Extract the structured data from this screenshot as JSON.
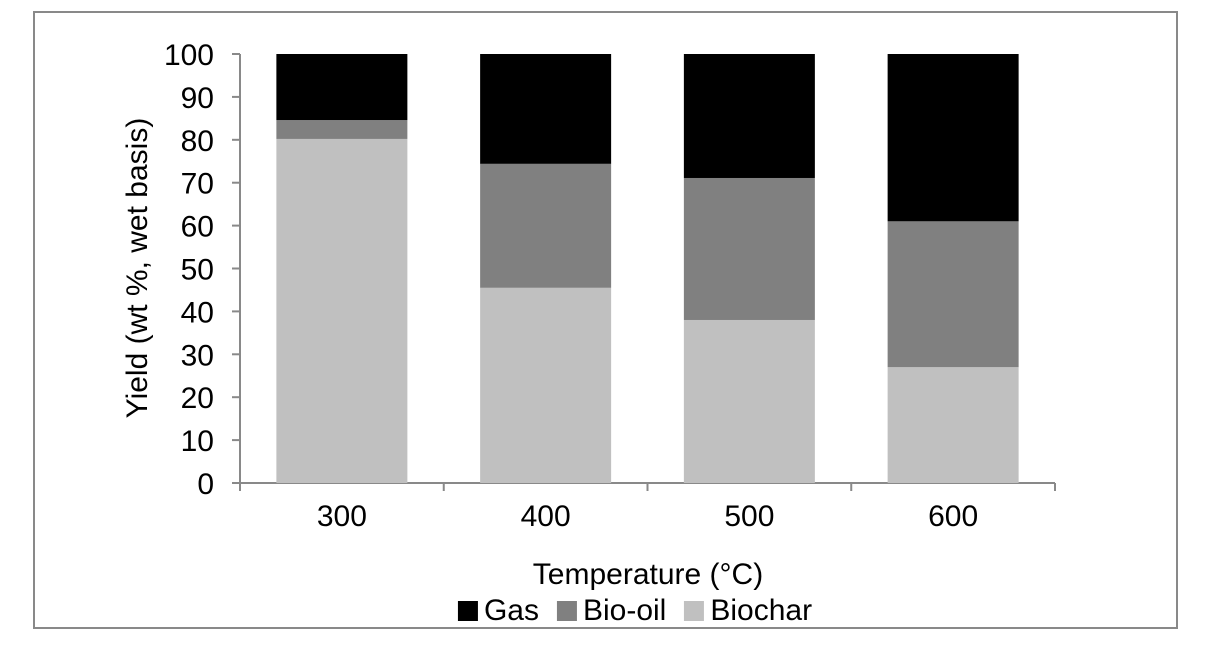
{
  "chart_data": {
    "type": "bar",
    "stacked": true,
    "title": "",
    "xlabel": "Temperature (°C)",
    "ylabel": "Yield (wt %, wet basis)",
    "ylim": [
      0,
      100
    ],
    "yticks": [
      0,
      10,
      20,
      30,
      40,
      50,
      60,
      70,
      80,
      90,
      100
    ],
    "categories": [
      "300",
      "400",
      "500",
      "600"
    ],
    "series": [
      {
        "name": "Biochar",
        "color": "#c0c0c0",
        "values": [
          80.2,
          45.5,
          38.0,
          27.0
        ]
      },
      {
        "name": "Bio-oil",
        "color": "#808080",
        "values": [
          4.4,
          28.9,
          33.1,
          34.0
        ]
      },
      {
        "name": "Gas",
        "color": "#000000",
        "values": [
          15.4,
          25.6,
          28.9,
          39.0
        ]
      }
    ],
    "legend": {
      "position": "bottom",
      "order": [
        "Gas",
        "Bio-oil",
        "Biochar"
      ]
    },
    "grid": false
  },
  "labels": {
    "xlabel": "Temperature (°C)",
    "ylabel": "Yield (wt %, wet basis)",
    "legend": [
      {
        "name": "Gas",
        "color": "#000000"
      },
      {
        "name": "Bio-oil",
        "color": "#808080"
      },
      {
        "name": "Biochar",
        "color": "#c0c0c0"
      }
    ]
  }
}
